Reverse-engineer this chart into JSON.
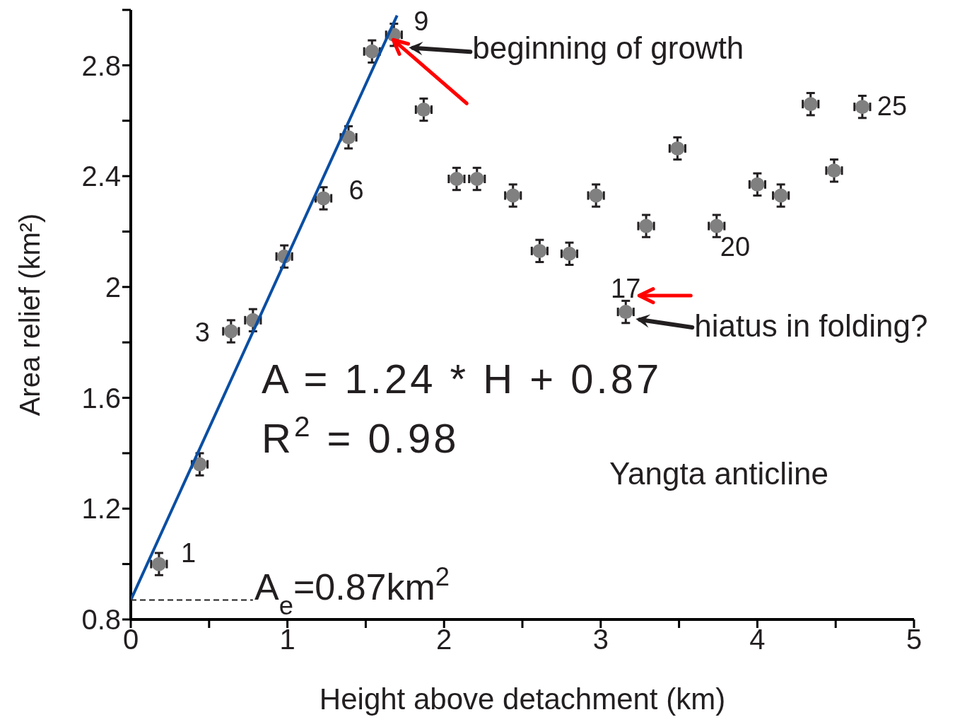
{
  "chart_data": {
    "type": "scatter",
    "xlabel": "Height above detachment (km)",
    "ylabel": "Area relief (km²)",
    "xlim": [
      0,
      5
    ],
    "ylim": [
      0.8,
      3.0
    ],
    "xticks": [
      0,
      {
        "value": 0.5,
        "label": null
      },
      1,
      {
        "value": 1.5,
        "label": null
      },
      2,
      {
        "value": 2.5,
        "label": null
      },
      3,
      {
        "value": 3.5,
        "label": null
      },
      4,
      {
        "value": 4.5,
        "label": null
      },
      5
    ],
    "yticks": [
      0.8,
      {
        "value": 1.0,
        "label": null
      },
      1.2,
      {
        "value": 1.4,
        "label": null
      },
      1.6,
      {
        "value": 1.8,
        "label": null
      },
      2,
      {
        "value": 2.2,
        "label": null
      },
      2.4,
      {
        "value": 2.6,
        "label": null
      },
      2.8,
      {
        "value": 3.0,
        "label": null
      }
    ],
    "series": [
      {
        "type": "scatter",
        "color": "#808080",
        "marker": "circle",
        "x": [
          0.18,
          0.44,
          0.64,
          0.78,
          0.98,
          1.23,
          1.39,
          1.54,
          1.68,
          1.87,
          2.08,
          2.21,
          2.44,
          2.61,
          2.8,
          2.97,
          3.16,
          3.29,
          3.49,
          3.74,
          4.0,
          4.15,
          4.34,
          4.49,
          4.67
        ],
        "values": [
          1.0,
          1.36,
          1.84,
          1.88,
          2.11,
          2.32,
          2.54,
          2.85,
          2.91,
          2.64,
          2.39,
          2.39,
          2.33,
          2.13,
          2.12,
          2.33,
          1.91,
          2.22,
          2.5,
          2.22,
          2.37,
          2.33,
          2.66,
          2.42,
          2.65
        ],
        "errors": [
          0.04,
          0.04,
          0.04,
          0.04,
          0.04,
          0.04,
          0.04,
          0.04,
          0.04,
          0.04,
          0.04,
          0.04,
          0.04,
          0.04,
          0.04,
          0.04,
          0.04,
          0.04,
          0.04,
          0.04,
          0.04,
          0.04,
          0.04,
          0.04,
          0.04
        ],
        "xerrors": [
          0.05,
          0.05,
          0.05,
          0.05,
          0.05,
          0.05,
          0.05,
          0.05,
          0.05,
          0.05,
          0.05,
          0.05,
          0.05,
          0.05,
          0.05,
          0.05,
          0.05,
          0.05,
          0.05,
          0.05,
          0.05,
          0.05,
          0.05,
          0.05,
          0.05
        ]
      },
      {
        "type": "line",
        "color": "#0a4ea3",
        "marker": "none",
        "line_style": "solid",
        "x": [
          0,
          1.7
        ],
        "values": [
          0.87,
          2.98
        ]
      },
      {
        "type": "line",
        "color": "#231f20",
        "marker": "none",
        "line_style": "dashed",
        "x": [
          0,
          0.78
        ],
        "values": [
          0.87,
          0.87
        ]
      }
    ],
    "annotations": [
      {
        "text": "1",
        "x": 0.18,
        "y": 1.0
      },
      {
        "text": "3",
        "x": 0.64,
        "y": 1.84
      },
      {
        "text": "6",
        "x": 1.23,
        "y": 2.32
      },
      {
        "text": "9",
        "x": 1.68,
        "y": 2.91
      },
      {
        "text": "17",
        "x": 3.16,
        "y": 1.91
      },
      {
        "text": "20",
        "x": 3.74,
        "y": 2.22
      },
      {
        "text": "25",
        "x": 4.67,
        "y": 2.65
      },
      {
        "text": "beginning of growth",
        "x": 1.68,
        "y": 2.91
      },
      {
        "text": "hiatus in folding?",
        "x": 3.16,
        "y": 1.91
      },
      "A = 1.24 * H  + 0.87",
      "R$^{2}$ = 0.98",
      "Yangta anticline",
      "A$_{e}$=0.87km$^{2}$"
    ]
  }
}
